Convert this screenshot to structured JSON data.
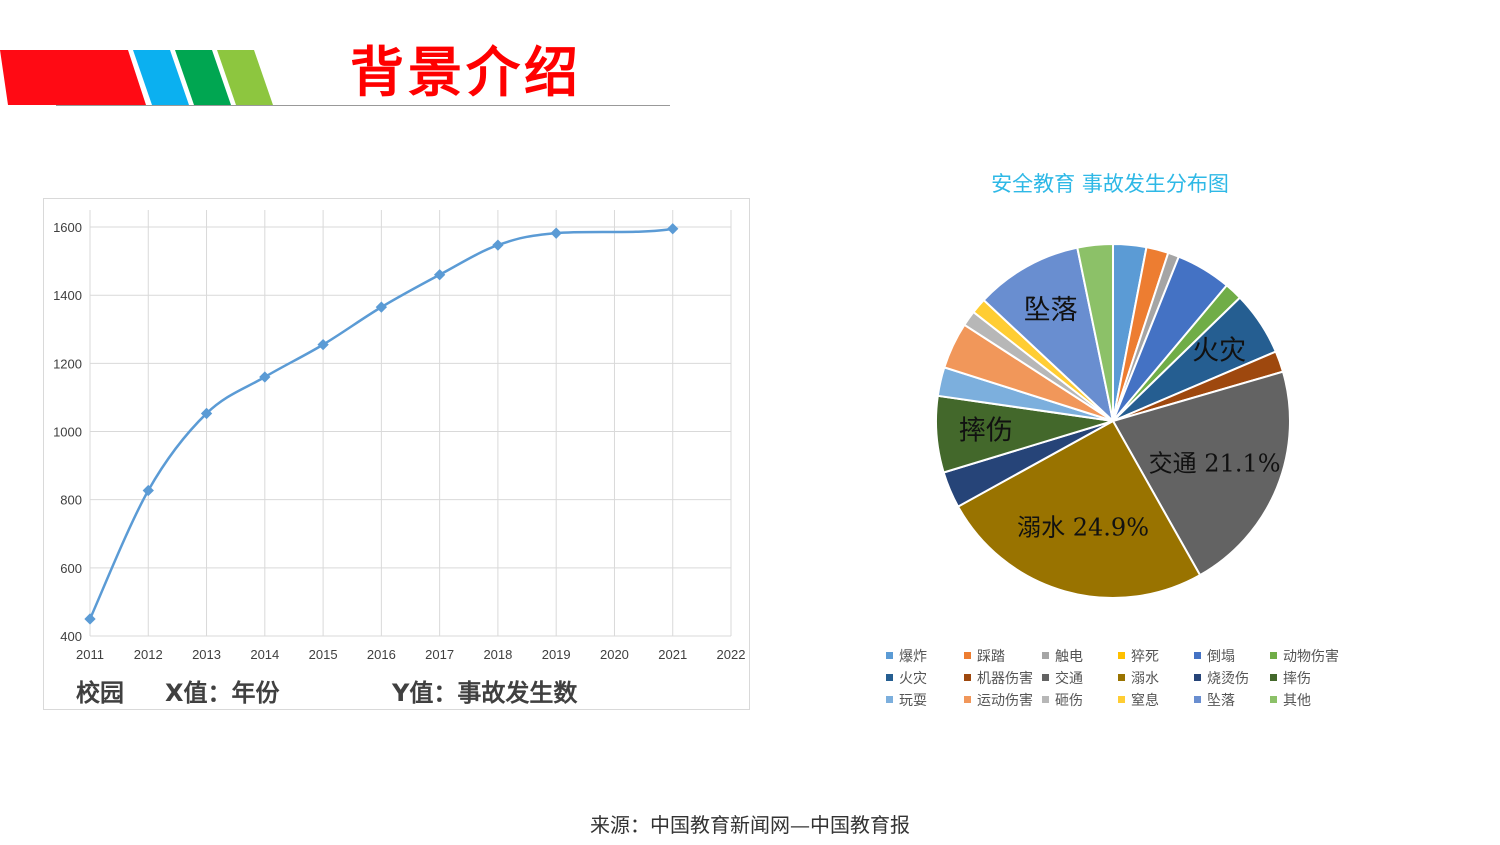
{
  "header": {
    "title": "背景介绍"
  },
  "colors": {
    "title": "#ff0000",
    "stripes": [
      "#ff0a14",
      "#0bb0f0",
      "#00a651",
      "#8dc63f"
    ],
    "line": "#5b9bd5"
  },
  "chart_data": [
    {
      "type": "line",
      "x": [
        2011,
        2012,
        2013,
        2014,
        2015,
        2016,
        2017,
        2018,
        2019,
        2020,
        2021,
        2022
      ],
      "points": [
        {
          "x": 2011,
          "y": 450
        },
        {
          "x": 2012,
          "y": 827
        },
        {
          "x": 2013,
          "y": 1053
        },
        {
          "x": 2014,
          "y": 1160
        },
        {
          "x": 2015,
          "y": 1255
        },
        {
          "x": 2016,
          "y": 1365
        },
        {
          "x": 2017,
          "y": 1460
        },
        {
          "x": 2018,
          "y": 1547
        },
        {
          "x": 2019,
          "y": 1582
        },
        {
          "x": 2021,
          "y": 1595
        }
      ],
      "xlim": [
        2011,
        2022
      ],
      "ylim": [
        400,
        1650
      ],
      "yticks": [
        400,
        600,
        800,
        1000,
        1200,
        1400,
        1600
      ],
      "grid": true,
      "captions": {
        "a": "校园",
        "b": "X值：年份",
        "c": "Y值：事故发生数"
      }
    },
    {
      "type": "pie",
      "title": "安全教育  事故发生分布图",
      "slices": [
        {
          "name": "爆炸",
          "value": 3.0,
          "color": "#5b9bd5"
        },
        {
          "name": "踩踏",
          "value": 2.0,
          "color": "#ed7d31"
        },
        {
          "name": "触电",
          "value": 1.0,
          "color": "#a5a5a5"
        },
        {
          "name": "猝死",
          "value": 0.0,
          "color": "#ffc000"
        },
        {
          "name": "倒塌",
          "value": 5.0,
          "color": "#4472c4"
        },
        {
          "name": "动物伤害",
          "value": 1.6,
          "color": "#70ad47"
        },
        {
          "name": "火灾",
          "value": 5.8,
          "color": "#255e91",
          "label": "火灾"
        },
        {
          "name": "机器伤害",
          "value": 1.9,
          "color": "#9e480e"
        },
        {
          "name": "交通",
          "value": 21.1,
          "color": "#636363",
          "label": "交通 21.1%"
        },
        {
          "name": "溺水",
          "value": 24.9,
          "color": "#997300",
          "label": "溺水 24.9%"
        },
        {
          "name": "烧烫伤",
          "value": 3.3,
          "color": "#264478"
        },
        {
          "name": "摔伤",
          "value": 6.9,
          "color": "#43682b",
          "label": "摔伤"
        },
        {
          "name": "玩耍",
          "value": 2.6,
          "color": "#7cafdd"
        },
        {
          "name": "运动伤害",
          "value": 4.2,
          "color": "#f1975a"
        },
        {
          "name": "砸伤",
          "value": 1.4,
          "color": "#b7b7b7"
        },
        {
          "name": "窒息",
          "value": 1.4,
          "color": "#ffcd33"
        },
        {
          "name": "坠落",
          "value": 9.7,
          "color": "#698ed0",
          "label": "坠落"
        },
        {
          "name": "其他",
          "value": 3.2,
          "color": "#8cc168"
        }
      ],
      "legend": "bottom"
    }
  ],
  "footer": {
    "source": "来源：中国教育新闻网—中国教育报"
  }
}
